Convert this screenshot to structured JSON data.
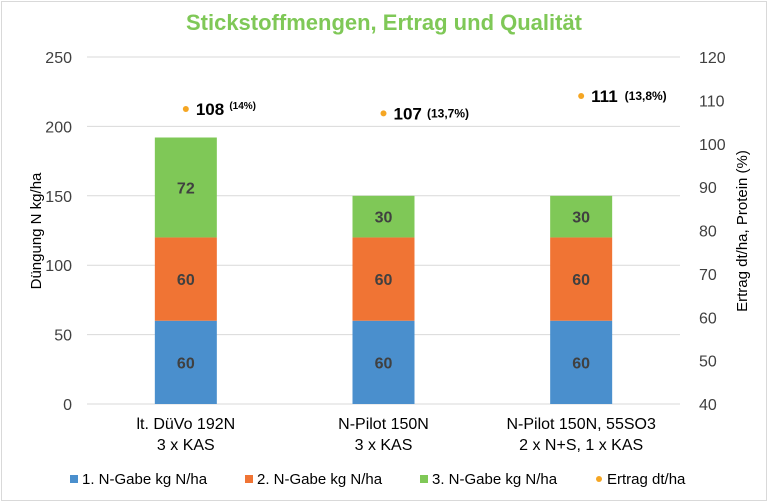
{
  "chart_data": {
    "type": "bar",
    "stacked": true,
    "title": "Stickstoffmengen, Ertrag und Qualität",
    "categories": [
      [
        "lt. DüVo  192N",
        "3 x KAS"
      ],
      [
        "N-Pilot 150N",
        "3 x KAS"
      ],
      [
        "N-Pilot 150N, 55SO3",
        "2 x N+S, 1 x KAS"
      ]
    ],
    "ylabel": "Düngung N kg/ha",
    "ylim": [
      0,
      250
    ],
    "yticks": [
      0,
      50,
      100,
      150,
      200,
      250
    ],
    "y2label": "Ertrag dt/ha, Protein (%)",
    "y2lim": [
      40,
      120
    ],
    "y2ticks": [
      40,
      50,
      60,
      70,
      80,
      90,
      100,
      110,
      120
    ],
    "grid": true,
    "legend_position": "bottom",
    "series": [
      {
        "name": "1. N-Gabe kg N/ha",
        "values": [
          60,
          60,
          60
        ],
        "color": "#4a8fcd",
        "labels": [
          "60",
          "60",
          "60"
        ]
      },
      {
        "name": "2. N-Gabe kg N/ha",
        "values": [
          60,
          60,
          60
        ],
        "color": "#f07434",
        "labels": [
          "60",
          "60",
          "60"
        ]
      },
      {
        "name": "3. N-Gabe kg N/ha",
        "values": [
          72,
          30,
          30
        ],
        "color": "#7fc857",
        "labels": [
          "72",
          "30",
          "30"
        ]
      }
    ],
    "points": {
      "name": "Ertrag dt/ha",
      "axis": "right",
      "values": [
        108,
        107,
        111
      ],
      "color": "#f5a623",
      "labels": [
        "108",
        "107",
        "111"
      ],
      "sublabels": [
        "(14%)",
        "(13,7%)",
        "(13,8%)"
      ]
    },
    "title_color": "#7fc857"
  }
}
